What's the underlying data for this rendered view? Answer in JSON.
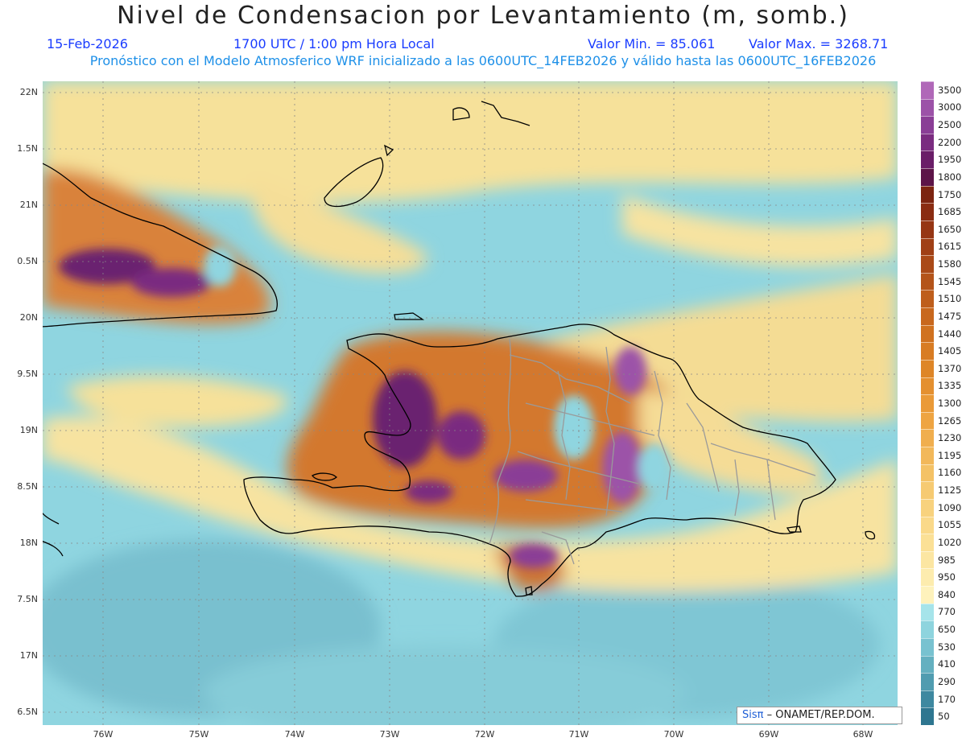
{
  "header": {
    "title": "Nivel de Condensacion por Levantamiento (m, somb.)",
    "date": "15-Feb-2026",
    "time": "1700 UTC / 1:00 pm Hora Local",
    "min_value": "Valor Min. = 85.061",
    "max_value": "Valor Max. = 3268.71",
    "model_info": "Pronóstico con el Modelo Atmosferico WRF inicializado a las 0600UTC_14FEB2026 y válido hasta las  0600UTC_16FEB2026"
  },
  "map": {
    "lat_labels": [
      "22N",
      "1.5N",
      "21N",
      "0.5N",
      "20N",
      "9.5N",
      "19N",
      "8.5N",
      "18N",
      "7.5N",
      "17N",
      "6.5N"
    ],
    "lon_labels": [
      "76W",
      "75W",
      "74W",
      "73W",
      "72W",
      "71W",
      "70W",
      "69W",
      "68W"
    ],
    "credit_brand": "Sisπ",
    "credit_text": "– ONAMET/REP.DOM."
  },
  "legend": {
    "levels": [
      {
        "label": "3500",
        "color": "#b068b8"
      },
      {
        "label": "3000",
        "color": "#9c52a8"
      },
      {
        "label": "2500",
        "color": "#8a3e96"
      },
      {
        "label": "2200",
        "color": "#7a2c80"
      },
      {
        "label": "1950",
        "color": "#6a1e68"
      },
      {
        "label": "1800",
        "color": "#5c1448"
      },
      {
        "label": "1750",
        "color": "#7c2410"
      },
      {
        "label": "1685",
        "color": "#8a2c12"
      },
      {
        "label": "1650",
        "color": "#963614"
      },
      {
        "label": "1615",
        "color": "#a04016"
      },
      {
        "label": "1580",
        "color": "#aa4a18"
      },
      {
        "label": "1545",
        "color": "#b4541a"
      },
      {
        "label": "1510",
        "color": "#be5e1c"
      },
      {
        "label": "1475",
        "color": "#c8681e"
      },
      {
        "label": "1440",
        "color": "#d07220"
      },
      {
        "label": "1405",
        "color": "#d87c24"
      },
      {
        "label": "1370",
        "color": "#de8628"
      },
      {
        "label": "1335",
        "color": "#e49030"
      },
      {
        "label": "1300",
        "color": "#ea9a38"
      },
      {
        "label": "1265",
        "color": "#eea442"
      },
      {
        "label": "1230",
        "color": "#f0ae4e"
      },
      {
        "label": "1195",
        "color": "#f2b85a"
      },
      {
        "label": "1160",
        "color": "#f4c266"
      },
      {
        "label": "1125",
        "color": "#f6ca72"
      },
      {
        "label": "1090",
        "color": "#f8d27e"
      },
      {
        "label": "1055",
        "color": "#fad98a"
      },
      {
        "label": "1020",
        "color": "#fbe096"
      },
      {
        "label": "985",
        "color": "#fce6a2"
      },
      {
        "label": "950",
        "color": "#fdecae"
      },
      {
        "label": "840",
        "color": "#fef2bc"
      },
      {
        "label": "770",
        "color": "#a6e4ea"
      },
      {
        "label": "650",
        "color": "#8ed4de"
      },
      {
        "label": "530",
        "color": "#78c2d0"
      },
      {
        "label": "410",
        "color": "#64b0c0"
      },
      {
        "label": "290",
        "color": "#509cb0"
      },
      {
        "label": "170",
        "color": "#3e88a0"
      },
      {
        "label": "50",
        "color": "#2e7690"
      }
    ]
  }
}
